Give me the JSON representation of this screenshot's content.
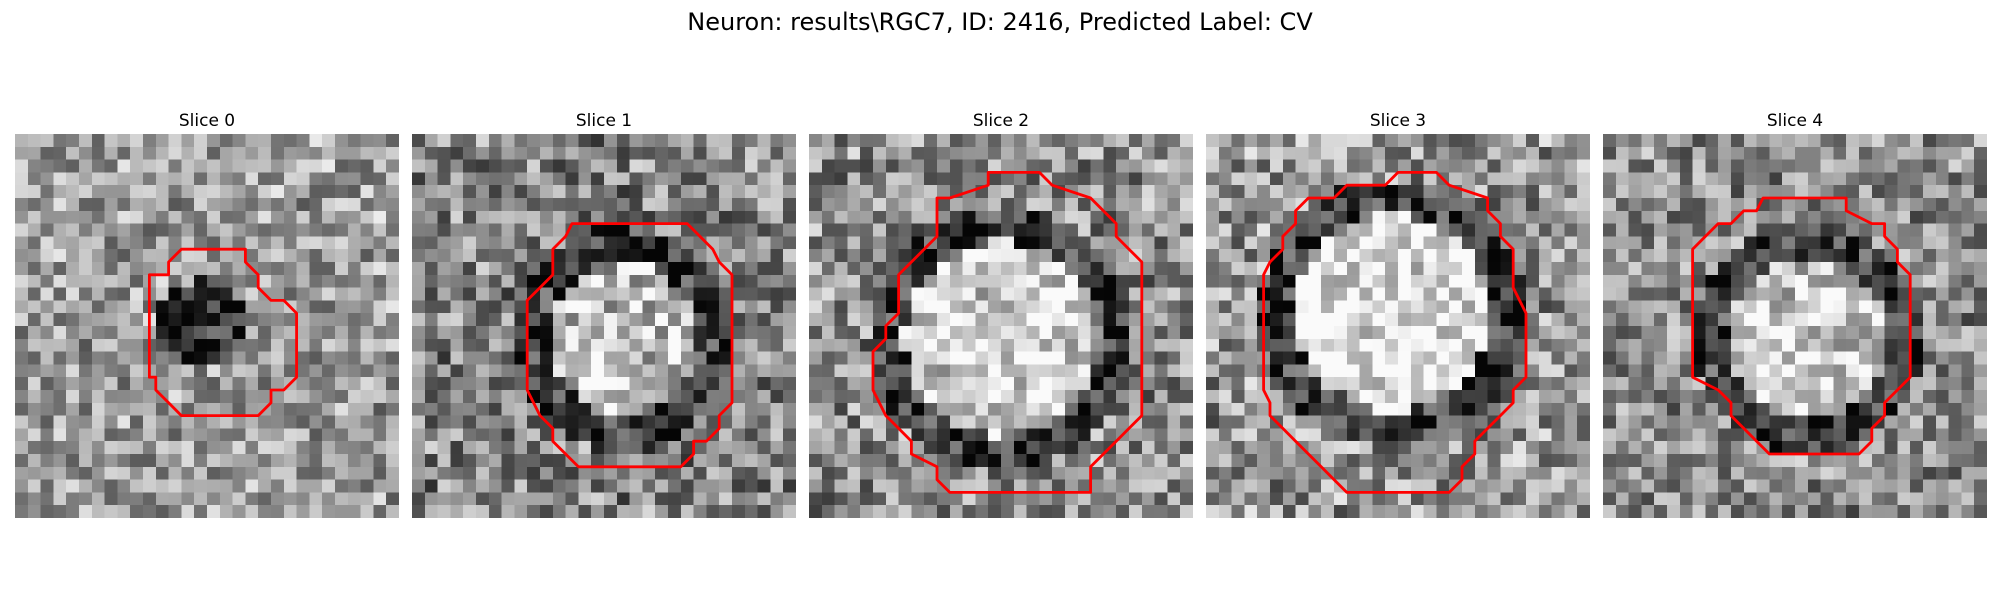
{
  "figure": {
    "title": "Neuron: results\\RGC7, ID: 2416, Predicted Label: CV"
  },
  "panels": [
    {
      "label": "Slice 0"
    },
    {
      "label": "Slice 1"
    },
    {
      "label": "Slice 2"
    },
    {
      "label": "Slice 3"
    },
    {
      "label": "Slice 4"
    }
  ],
  "colors": {
    "contour": "#ff0000",
    "background": "#ffffff"
  }
}
